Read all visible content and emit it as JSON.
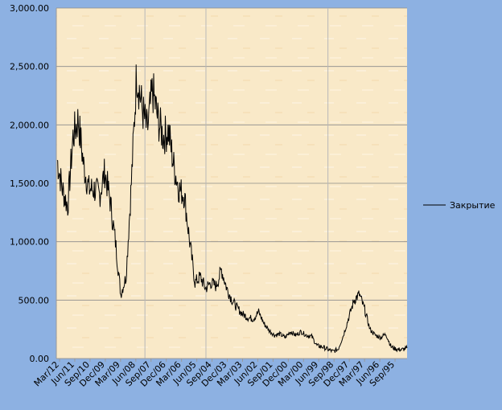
{
  "chart_data": {
    "type": "line",
    "title": "",
    "xlabel": "",
    "ylabel": "",
    "ylim": [
      0,
      3000
    ],
    "x_axis_reversed": true,
    "y_ticks": [
      "3,000.00",
      "2,500.00",
      "2,000.00",
      "1,500.00",
      "1,000.00",
      "500.00",
      "0.00"
    ],
    "x_ticks": [
      "Mar/12",
      "Jun/11",
      "Sep/10",
      "Dec/09",
      "Mar/09",
      "Jun/08",
      "Sep/07",
      "Dec/06",
      "Mar/06",
      "Jun/05",
      "Sep/04",
      "Dec/03",
      "Mar/03",
      "Jun/02",
      "Sep/01",
      "Dec/00",
      "Mar/00",
      "Jun/99",
      "Sep/98",
      "Dec/97",
      "Mar/97",
      "Jun/96",
      "Sep/95"
    ],
    "grid": true,
    "legend_position": "right",
    "series": [
      {
        "name": "Закрытие",
        "color": "#000000",
        "x": [
          "Mar/12",
          "Dec/11",
          "Sep/11",
          "Jun/11",
          "Mar/11",
          "Dec/10",
          "Sep/10",
          "Jun/10",
          "Mar/10",
          "Dec/09",
          "Sep/09",
          "Jun/09",
          "Mar/09",
          "Dec/08",
          "Sep/08",
          "Jun/08",
          "Mar/08",
          "Dec/07",
          "Sep/07",
          "Jun/07",
          "Mar/07",
          "Dec/06",
          "Sep/06",
          "Jun/06",
          "Mar/06",
          "Dec/05",
          "Sep/05",
          "Jun/05",
          "Mar/05",
          "Dec/04",
          "Sep/04",
          "Jun/04",
          "Mar/04",
          "Dec/03",
          "Sep/03",
          "Jun/03",
          "Mar/03",
          "Dec/02",
          "Sep/02",
          "Jun/02",
          "Mar/02",
          "Dec/01",
          "Sep/01",
          "Jun/01",
          "Mar/01",
          "Dec/00",
          "Sep/00",
          "Jun/00",
          "Mar/00",
          "Dec/99",
          "Sep/99",
          "Jun/99",
          "Mar/99",
          "Dec/98",
          "Sep/98",
          "Jun/98",
          "Mar/98",
          "Dec/97",
          "Sep/97",
          "Jun/97",
          "Mar/97",
          "Dec/96",
          "Sep/96",
          "Jun/96",
          "Mar/96",
          "Dec/95",
          "Sep/95"
        ],
        "values": [
          1700,
          1450,
          1300,
          1900,
          2050,
          1650,
          1450,
          1450,
          1400,
          1600,
          1350,
          1000,
          550,
          700,
          1500,
          2450,
          2150,
          1950,
          2300,
          2050,
          1900,
          1950,
          1650,
          1450,
          1400,
          1000,
          650,
          700,
          600,
          650,
          620,
          760,
          600,
          500,
          430,
          380,
          350,
          340,
          400,
          300,
          240,
          200,
          210,
          180,
          230,
          200,
          230,
          200,
          190,
          110,
          100,
          80,
          60,
          80,
          200,
          350,
          500,
          550,
          420,
          250,
          200,
          180,
          210,
          100,
          80,
          75,
          90
        ]
      }
    ]
  }
}
